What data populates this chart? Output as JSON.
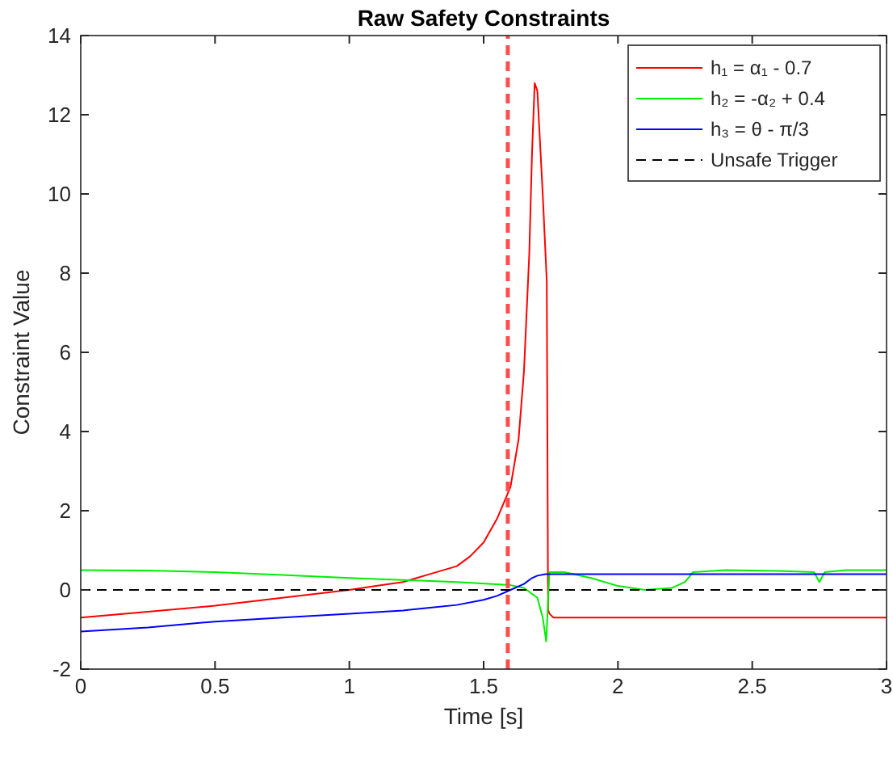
{
  "chart_data": {
    "type": "line",
    "title": "Raw Safety Constraints",
    "xlabel": "Time [s]",
    "ylabel": "Constraint Value",
    "xlim": [
      0,
      3
    ],
    "ylim": [
      -2,
      14
    ],
    "xticks": [
      0,
      0.5,
      1,
      1.5,
      2,
      2.5,
      3
    ],
    "yticks": [
      -2,
      0,
      2,
      4,
      6,
      8,
      10,
      12,
      14
    ],
    "grid": false,
    "legend": "top right",
    "line_style": "solid",
    "series": [
      {
        "name": "h₁ = α₁ - 0.7",
        "color": "#ff0000",
        "x": [
          0,
          0.25,
          0.5,
          0.75,
          1,
          1.1,
          1.2,
          1.3,
          1.4,
          1.45,
          1.5,
          1.55,
          1.6,
          1.63,
          1.65,
          1.67,
          1.68,
          1.69,
          1.7,
          1.72,
          1.735,
          1.74,
          1.745,
          1.76,
          2,
          2.5,
          3
        ],
        "values": [
          -0.7,
          -0.55,
          -0.4,
          -0.2,
          0,
          0.1,
          0.2,
          0.4,
          0.6,
          0.85,
          1.2,
          1.8,
          2.6,
          3.8,
          5.5,
          8.5,
          11,
          12.8,
          12.6,
          10,
          7.8,
          -0.5,
          -0.6,
          -0.7,
          -0.7,
          -0.7,
          -0.7
        ]
      },
      {
        "name": "h₂ = -α₂ + 0.4",
        "color": "#00ee00",
        "x": [
          0,
          0.25,
          0.5,
          0.75,
          1,
          1.2,
          1.4,
          1.6,
          1.65,
          1.7,
          1.72,
          1.733,
          1.745,
          1.8,
          1.9,
          2,
          2.1,
          2.2,
          2.25,
          2.28,
          2.4,
          2.6,
          2.73,
          2.75,
          2.77,
          2.85,
          3
        ],
        "values": [
          0.5,
          0.49,
          0.45,
          0.38,
          0.3,
          0.25,
          0.2,
          0.12,
          0.05,
          -0.2,
          -0.7,
          -1.3,
          0.45,
          0.45,
          0.3,
          0.1,
          0.0,
          0.05,
          0.2,
          0.45,
          0.5,
          0.48,
          0.45,
          0.2,
          0.45,
          0.5,
          0.5
        ]
      },
      {
        "name": "h₃ = θ - π/3",
        "color": "#0000ff",
        "x": [
          0,
          0.25,
          0.5,
          0.75,
          1,
          1.2,
          1.3,
          1.4,
          1.5,
          1.55,
          1.6,
          1.65,
          1.68,
          1.7,
          1.73,
          2,
          2.5,
          3
        ],
        "values": [
          -1.05,
          -0.95,
          -0.8,
          -0.7,
          -0.6,
          -0.52,
          -0.45,
          -0.38,
          -0.25,
          -0.15,
          0,
          0.15,
          0.3,
          0.36,
          0.4,
          0.4,
          0.4,
          0.4
        ]
      },
      {
        "name": "Unsafe Trigger",
        "color": "#000000",
        "line_style": "dashed",
        "x": [
          0,
          3
        ],
        "values": [
          0,
          0
        ]
      }
    ],
    "ref_lines": [
      {
        "axis": "x",
        "value": 1.59,
        "color": "#ff4d4d",
        "line_style": "dashed"
      }
    ]
  }
}
